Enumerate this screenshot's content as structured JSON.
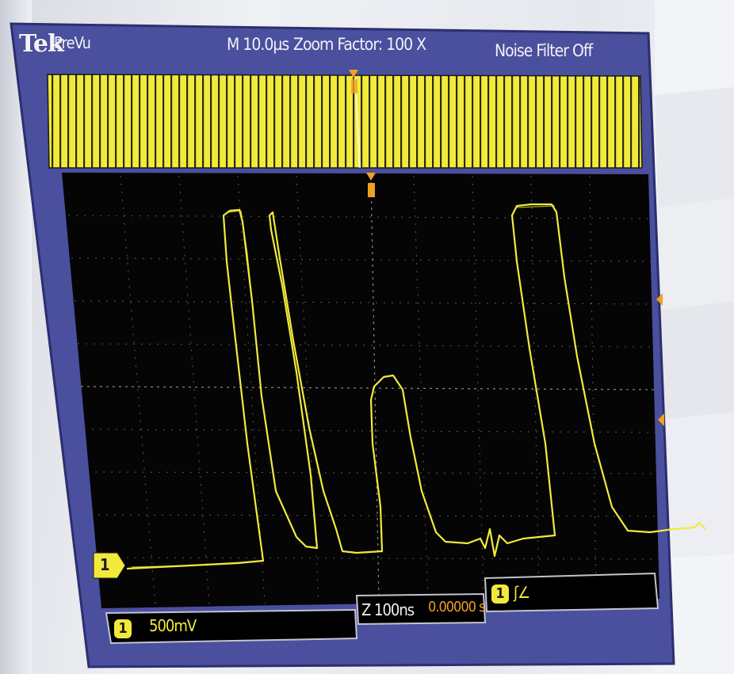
{
  "header": {
    "brand": "Tek",
    "mode": "PreVu",
    "timebase": "M 10.0µs",
    "zoom": "Zoom Factor: 100 X",
    "noise_filter": "Noise Filter Off"
  },
  "footer": {
    "channel_number": "1",
    "volts_per_div": "500mV",
    "zoom_timebase": "Z 100ns",
    "zoom_position": "0.00000 s",
    "trigger_channel": "1",
    "trigger_type": "ʃ∠"
  },
  "marker": {
    "channel_number": "1"
  },
  "colors": {
    "trace": "#f2ea3b",
    "screen_frame": "#4a4f9e",
    "trigger_marker": "#f0a020",
    "grid": "#6c6c6c",
    "position_text": "#f0a020"
  }
}
